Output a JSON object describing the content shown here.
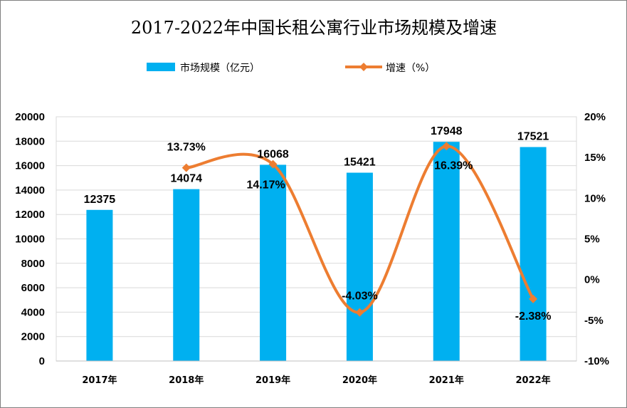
{
  "chart_data": {
    "type": "bar+line",
    "title": "2017-2022年中国长租公寓行业市场规模及增速",
    "categories": [
      "2017年",
      "2018年",
      "2019年",
      "2020年",
      "2021年",
      "2022年"
    ],
    "series": [
      {
        "name": "市场规模（亿元）",
        "type": "bar",
        "axis": "left",
        "color": "#00b0f0",
        "values": [
          12375,
          14074,
          16068,
          15421,
          17948,
          17521
        ],
        "labels": [
          "12375",
          "14074",
          "16068",
          "15421",
          "17948",
          "17521"
        ]
      },
      {
        "name": "增速（%）",
        "type": "line",
        "smooth": true,
        "marker": "diamond",
        "axis": "right",
        "color": "#ed7d31",
        "values": [
          null,
          13.73,
          14.17,
          -4.03,
          16.39,
          -2.38
        ],
        "labels": [
          "",
          "13.73%",
          "14.17%",
          "-4.03%",
          "16.39%",
          "-2.38%"
        ]
      }
    ],
    "y_left": {
      "ylim": [
        0,
        20000
      ],
      "ticks": [
        "0",
        "2000",
        "4000",
        "6000",
        "8000",
        "10000",
        "12000",
        "14000",
        "16000",
        "18000",
        "20000"
      ]
    },
    "y_right": {
      "ylim": [
        -10,
        20
      ],
      "ticks": [
        "-10%",
        "-5%",
        "0%",
        "5%",
        "10%",
        "15%",
        "20%"
      ]
    },
    "grid": true,
    "legend": "top-center"
  }
}
